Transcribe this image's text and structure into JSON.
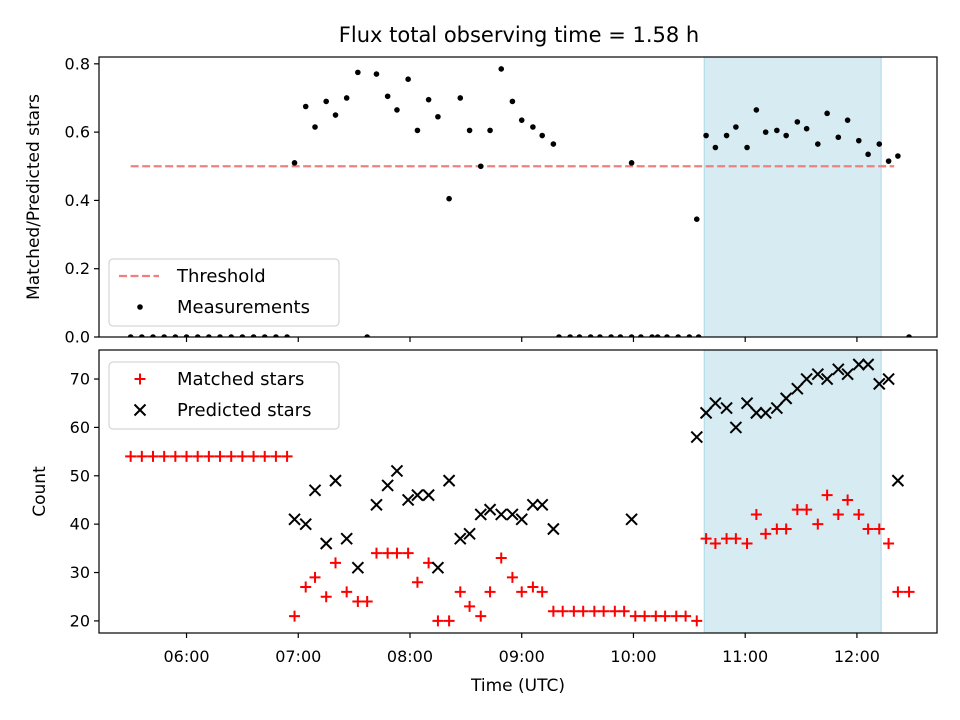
{
  "title": "Flux total observing time = 1.58 h",
  "chart_data": [
    {
      "type": "scatter",
      "ylabel": "Matched/Predicted stars",
      "ylim": [
        0,
        0.82
      ],
      "yticks": [
        "0.0",
        "0.2",
        "0.4",
        "0.6",
        "0.8"
      ],
      "ytick_values": [
        0,
        0.2,
        0.4,
        0.6,
        0.8
      ],
      "legend_position": "lower-left",
      "shaded_interval": [
        "10:38",
        "12:13"
      ],
      "series": [
        {
          "name": "Threshold",
          "style": "dashed-line",
          "color": "#f08080",
          "x": [
            "05:30",
            "12:20"
          ],
          "y": [
            0.5,
            0.5
          ]
        },
        {
          "name": "Measurements",
          "style": "dot",
          "color": "#000000",
          "points": [
            [
              "05:30",
              0
            ],
            [
              "05:36",
              0
            ],
            [
              "05:42",
              0
            ],
            [
              "05:48",
              0
            ],
            [
              "05:54",
              0
            ],
            [
              "06:00",
              0
            ],
            [
              "06:06",
              0
            ],
            [
              "06:12",
              0
            ],
            [
              "06:18",
              0
            ],
            [
              "06:24",
              0
            ],
            [
              "06:30",
              0
            ],
            [
              "06:36",
              0
            ],
            [
              "06:42",
              0
            ],
            [
              "06:48",
              0
            ],
            [
              "06:54",
              0
            ],
            [
              "06:58",
              0.51
            ],
            [
              "07:04",
              0.675
            ],
            [
              "07:09",
              0.615
            ],
            [
              "07:15",
              0.69
            ],
            [
              "07:20",
              0.65
            ],
            [
              "07:26",
              0.7
            ],
            [
              "07:32",
              0.775
            ],
            [
              "07:37",
              0
            ],
            [
              "07:42",
              0.77
            ],
            [
              "07:48",
              0.705
            ],
            [
              "07:53",
              0.665
            ],
            [
              "07:59",
              0.755
            ],
            [
              "08:04",
              0.605
            ],
            [
              "08:10",
              0.695
            ],
            [
              "08:15",
              0.645
            ],
            [
              "08:21",
              0.405
            ],
            [
              "08:27",
              0.7
            ],
            [
              "08:32",
              0.605
            ],
            [
              "08:38",
              0.5
            ],
            [
              "08:43",
              0.605
            ],
            [
              "08:49",
              0.785
            ],
            [
              "08:55",
              0.69
            ],
            [
              "09:00",
              0.635
            ],
            [
              "09:06",
              0.615
            ],
            [
              "09:11",
              0.59
            ],
            [
              "09:17",
              0.565
            ],
            [
              "09:20",
              0
            ],
            [
              "09:26",
              0
            ],
            [
              "09:31",
              0
            ],
            [
              "09:37",
              0
            ],
            [
              "09:42",
              0
            ],
            [
              "09:48",
              0
            ],
            [
              "09:53",
              0
            ],
            [
              "09:59",
              0
            ],
            [
              "10:04",
              0
            ],
            [
              "10:10",
              0
            ],
            [
              "09:59",
              0.51
            ],
            [
              "10:13",
              0
            ],
            [
              "10:18",
              0
            ],
            [
              "10:24",
              0
            ],
            [
              "10:30",
              0
            ],
            [
              "10:35",
              0
            ],
            [
              "10:34",
              0.345
            ],
            [
              "10:39",
              0.59
            ],
            [
              "10:44",
              0.555
            ],
            [
              "10:50",
              0.59
            ],
            [
              "10:55",
              0.615
            ],
            [
              "11:01",
              0.555
            ],
            [
              "11:06",
              0.665
            ],
            [
              "11:11",
              0.6
            ],
            [
              "11:17",
              0.605
            ],
            [
              "11:22",
              0.59
            ],
            [
              "11:28",
              0.63
            ],
            [
              "11:33",
              0.61
            ],
            [
              "11:39",
              0.565
            ],
            [
              "11:44",
              0.655
            ],
            [
              "11:50",
              0.585
            ],
            [
              "11:55",
              0.635
            ],
            [
              "12:01",
              0.575
            ],
            [
              "12:06",
              0.535
            ],
            [
              "12:12",
              0.565
            ],
            [
              "12:17",
              0.515
            ],
            [
              "12:22",
              0.53
            ],
            [
              "12:28",
              0
            ]
          ]
        }
      ]
    },
    {
      "type": "scatter",
      "xlabel": "Time (UTC)",
      "ylabel": "Count",
      "ylim": [
        17.5,
        76
      ],
      "yticks": [
        "20",
        "30",
        "40",
        "50",
        "60",
        "70"
      ],
      "ytick_values": [
        20,
        30,
        40,
        50,
        60,
        70
      ],
      "xticks": [
        "06:00",
        "07:00",
        "08:00",
        "09:00",
        "10:00",
        "11:00",
        "12:00"
      ],
      "xlim": [
        "05:13",
        "12:43"
      ],
      "legend_position": "upper-left",
      "shaded_interval": [
        "10:38",
        "12:13"
      ],
      "series": [
        {
          "name": "Matched stars",
          "style": "plus",
          "color": "#ff0000",
          "points": [
            [
              "05:30",
              54
            ],
            [
              "05:36",
              54
            ],
            [
              "05:42",
              54
            ],
            [
              "05:48",
              54
            ],
            [
              "05:54",
              54
            ],
            [
              "06:00",
              54
            ],
            [
              "06:06",
              54
            ],
            [
              "06:12",
              54
            ],
            [
              "06:18",
              54
            ],
            [
              "06:24",
              54
            ],
            [
              "06:30",
              54
            ],
            [
              "06:36",
              54
            ],
            [
              "06:42",
              54
            ],
            [
              "06:48",
              54
            ],
            [
              "06:54",
              54
            ],
            [
              "06:58",
              21
            ],
            [
              "07:04",
              27
            ],
            [
              "07:09",
              29
            ],
            [
              "07:15",
              25
            ],
            [
              "07:20",
              32
            ],
            [
              "07:26",
              26
            ],
            [
              "07:32",
              24
            ],
            [
              "07:37",
              24
            ],
            [
              "07:42",
              34
            ],
            [
              "07:48",
              34
            ],
            [
              "07:53",
              34
            ],
            [
              "07:59",
              34
            ],
            [
              "08:04",
              28
            ],
            [
              "08:10",
              32
            ],
            [
              "08:15",
              20
            ],
            [
              "08:21",
              20
            ],
            [
              "08:27",
              26
            ],
            [
              "08:32",
              23
            ],
            [
              "08:38",
              21
            ],
            [
              "08:43",
              26
            ],
            [
              "08:49",
              33
            ],
            [
              "08:55",
              29
            ],
            [
              "09:00",
              26
            ],
            [
              "09:06",
              27
            ],
            [
              "09:11",
              26
            ],
            [
              "09:17",
              22
            ],
            [
              "09:22",
              22
            ],
            [
              "09:28",
              22
            ],
            [
              "09:33",
              22
            ],
            [
              "09:39",
              22
            ],
            [
              "09:44",
              22
            ],
            [
              "09:50",
              22
            ],
            [
              "09:55",
              22
            ],
            [
              "10:01",
              21
            ],
            [
              "10:06",
              21
            ],
            [
              "10:12",
              21
            ],
            [
              "10:17",
              21
            ],
            [
              "10:23",
              21
            ],
            [
              "10:28",
              21
            ],
            [
              "10:34",
              20
            ],
            [
              "10:39",
              37
            ],
            [
              "10:44",
              36
            ],
            [
              "10:50",
              37
            ],
            [
              "10:55",
              37
            ],
            [
              "11:01",
              36
            ],
            [
              "11:06",
              42
            ],
            [
              "11:11",
              38
            ],
            [
              "11:17",
              39
            ],
            [
              "11:22",
              39
            ],
            [
              "11:28",
              43
            ],
            [
              "11:33",
              43
            ],
            [
              "11:39",
              40
            ],
            [
              "11:44",
              46
            ],
            [
              "11:50",
              42
            ],
            [
              "11:55",
              45
            ],
            [
              "12:01",
              42
            ],
            [
              "12:06",
              39
            ],
            [
              "12:12",
              39
            ],
            [
              "12:17",
              36
            ],
            [
              "12:22",
              26
            ],
            [
              "12:28",
              26
            ]
          ]
        },
        {
          "name": "Predicted stars",
          "style": "x",
          "color": "#000000",
          "points": [
            [
              "06:58",
              41
            ],
            [
              "07:04",
              40
            ],
            [
              "07:09",
              47
            ],
            [
              "07:15",
              36
            ],
            [
              "07:20",
              49
            ],
            [
              "07:26",
              37
            ],
            [
              "07:32",
              31
            ],
            [
              "07:42",
              44
            ],
            [
              "07:48",
              48
            ],
            [
              "07:53",
              51
            ],
            [
              "07:59",
              45
            ],
            [
              "08:04",
              46
            ],
            [
              "08:10",
              46
            ],
            [
              "08:15",
              31
            ],
            [
              "08:21",
              49
            ],
            [
              "08:27",
              37
            ],
            [
              "08:32",
              38
            ],
            [
              "08:38",
              42
            ],
            [
              "08:43",
              43
            ],
            [
              "08:49",
              42
            ],
            [
              "08:55",
              42
            ],
            [
              "09:00",
              41
            ],
            [
              "09:06",
              44
            ],
            [
              "09:11",
              44
            ],
            [
              "09:17",
              39
            ],
            [
              "09:59",
              41
            ],
            [
              "10:34",
              58
            ],
            [
              "10:39",
              63
            ],
            [
              "10:44",
              65
            ],
            [
              "10:50",
              64
            ],
            [
              "10:55",
              60
            ],
            [
              "11:01",
              65
            ],
            [
              "11:06",
              63
            ],
            [
              "11:11",
              63
            ],
            [
              "11:17",
              64
            ],
            [
              "11:22",
              66
            ],
            [
              "11:28",
              68
            ],
            [
              "11:33",
              70
            ],
            [
              "11:39",
              71
            ],
            [
              "11:44",
              70
            ],
            [
              "11:50",
              72
            ],
            [
              "11:55",
              71
            ],
            [
              "12:01",
              73
            ],
            [
              "12:06",
              73
            ],
            [
              "12:12",
              69
            ],
            [
              "12:17",
              70
            ],
            [
              "12:22",
              49
            ]
          ]
        }
      ]
    }
  ]
}
